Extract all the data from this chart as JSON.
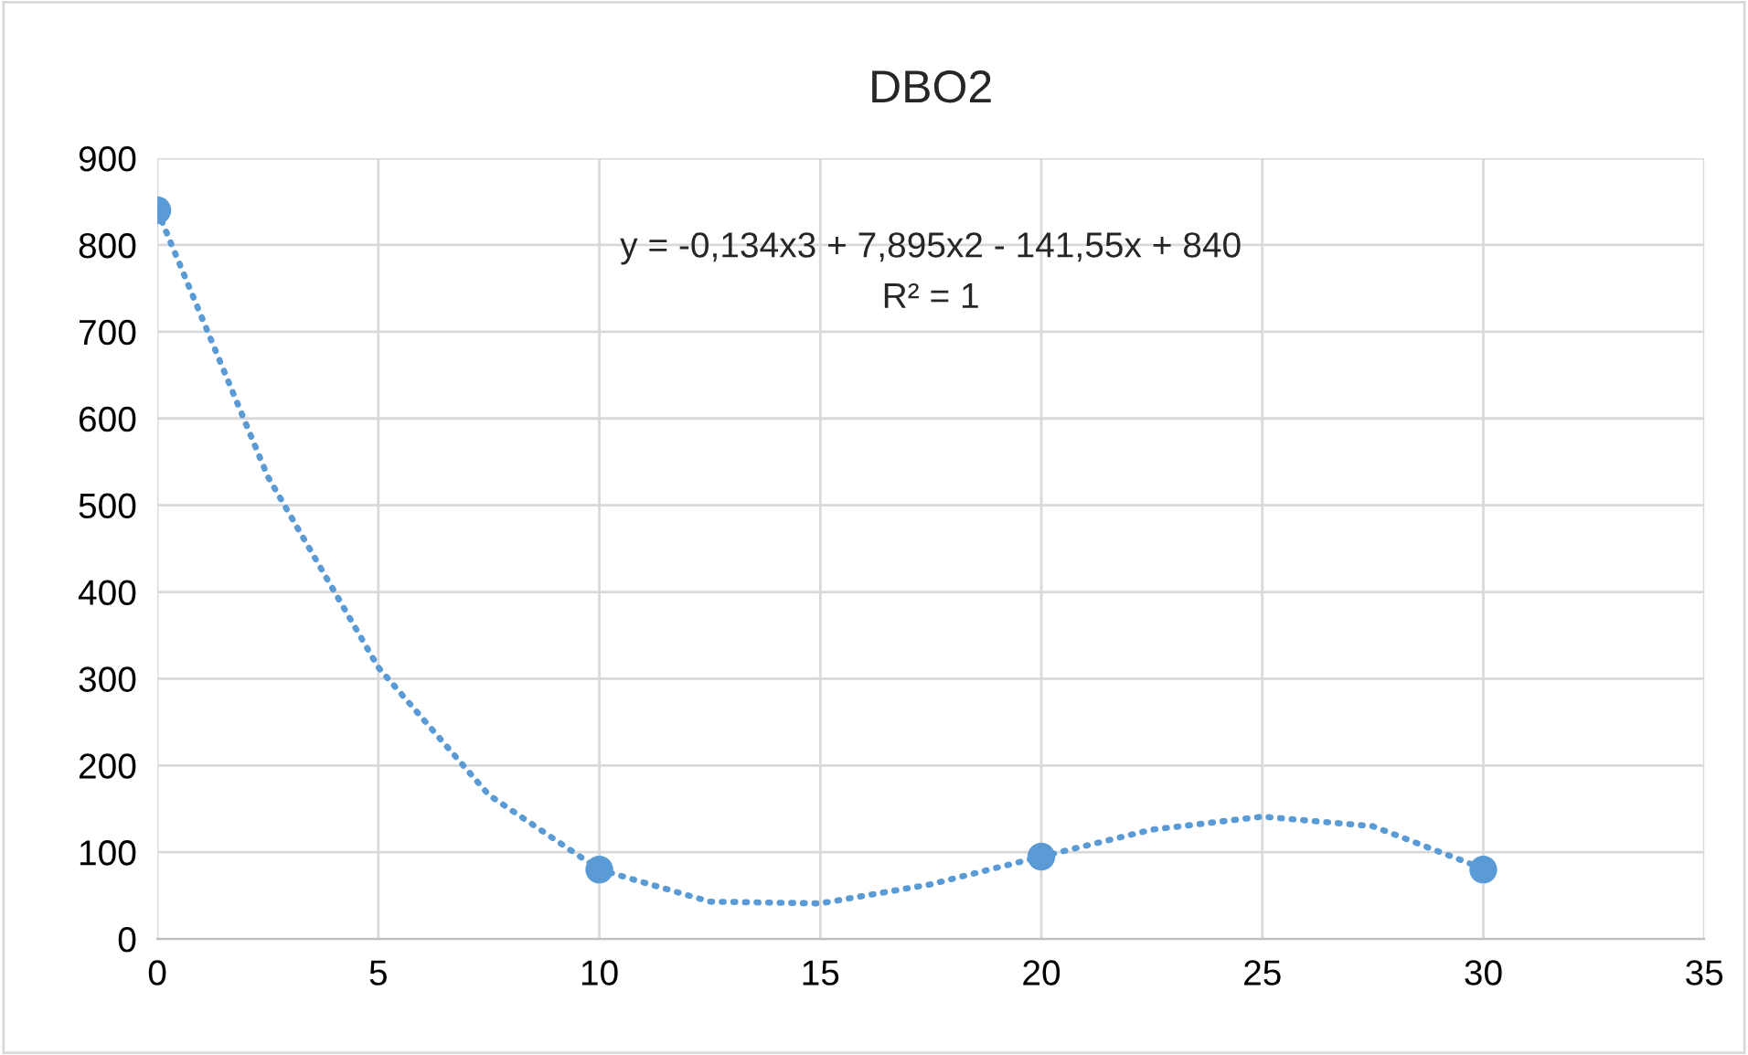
{
  "chart_data": {
    "type": "scatter",
    "title": "DBO2",
    "series": [
      {
        "color": "#5b9bd5",
        "marker": "circle",
        "x": [
          0,
          10,
          20,
          30
        ],
        "values": [
          840,
          80,
          95,
          80
        ]
      },
      {
        "type": "line",
        "color": "#5b9bd5",
        "marker": "none",
        "line_style": "dotted",
        "x": [
          0,
          2.5,
          5,
          7.5,
          10,
          12.5,
          15,
          17.5,
          20,
          22.5,
          25,
          27.5,
          30
        ],
        "values": [
          840,
          533,
          313,
          166,
          80,
          43,
          41,
          63,
          95,
          126,
          141,
          130,
          81
        ]
      }
    ],
    "annotations": [
      "y = -0,134x3 + 7,895x2 - 141,55x + 840",
      "R² = 1"
    ],
    "xlim": [
      0,
      35
    ],
    "xticks": [
      0,
      5,
      10,
      15,
      20,
      25,
      30,
      35
    ],
    "ylim": [
      0,
      900
    ],
    "yticks": [
      0,
      100,
      200,
      300,
      400,
      500,
      600,
      700,
      800,
      900
    ],
    "grid": true,
    "legend": false
  }
}
